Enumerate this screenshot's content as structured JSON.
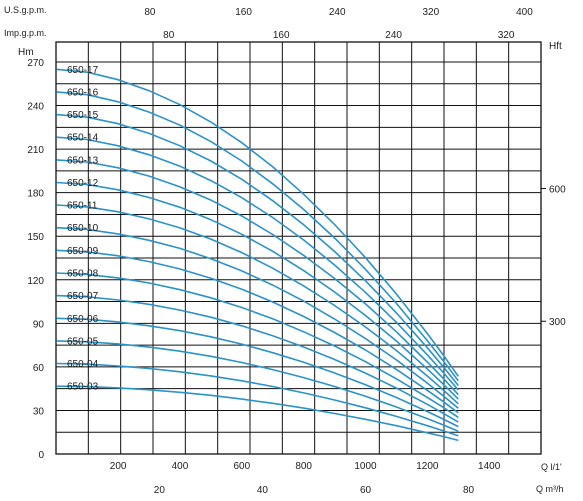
{
  "chart_data": {
    "type": "line",
    "axes": {
      "left_unit": "Hm",
      "right_unit": "Hft",
      "us_gpm_unit": "U.S.g.p.m.",
      "imp_gpm_unit": "Imp.g.p.m.",
      "ls_unit": "Q l/1'",
      "m3h_unit": "Q m³/h"
    },
    "ylim": [
      0,
      285
    ],
    "xlim": [
      0,
      1550
    ],
    "left_ticks": [
      "0",
      "30",
      "60",
      "90",
      "120",
      "150",
      "180",
      "210",
      "240",
      "270"
    ],
    "right_ticks": [
      "300",
      "600"
    ],
    "ls_ticks": [
      "200",
      "400",
      "600",
      "800",
      "1000",
      "1200",
      "1400"
    ],
    "m3h_ticks": [
      "20",
      "40",
      "60",
      "80"
    ],
    "us_ticks": [
      "80",
      "160",
      "240",
      "320",
      "400"
    ],
    "imp_ticks": [
      "80",
      "160",
      "240",
      "320"
    ],
    "x": [
      0,
      100,
      200,
      300,
      400,
      500,
      600,
      700,
      800,
      900,
      1000,
      1100,
      1200,
      1250,
      1300
    ],
    "series": [
      {
        "name": "650-03",
        "values": [
          46.7,
          46.4,
          45.5,
          44.2,
          42.5,
          40.4,
          37.8,
          34.9,
          31.6,
          27.9,
          23.9,
          19.5,
          14.6,
          12.1,
          9.4
        ]
      },
      {
        "name": "650-04",
        "values": [
          62.3,
          61.9,
          60.6,
          58.9,
          56.6,
          53.8,
          50.4,
          46.5,
          42.1,
          37.2,
          31.8,
          25.9,
          19.5,
          16.1,
          12.6
        ]
      },
      {
        "name": "650-05",
        "values": [
          77.9,
          77.3,
          75.8,
          73.6,
          70.8,
          67.3,
          63.0,
          58.1,
          52.6,
          46.5,
          39.8,
          32.4,
          24.4,
          20.1,
          15.7
        ]
      },
      {
        "name": "650-06",
        "values": [
          93.5,
          92.8,
          91.0,
          88.3,
          84.9,
          80.7,
          75.7,
          69.8,
          63.2,
          55.8,
          47.7,
          38.9,
          29.3,
          24.2,
          18.9
        ]
      },
      {
        "name": "650-07",
        "values": [
          109.1,
          108.3,
          106.1,
          103.1,
          99.1,
          94.2,
          88.3,
          81.4,
          73.7,
          65.1,
          55.7,
          45.4,
          34.2,
          28.2,
          22.0
        ]
      },
      {
        "name": "650-08",
        "values": [
          124.7,
          123.7,
          121.3,
          117.8,
          113.2,
          107.6,
          100.9,
          93.1,
          84.2,
          74.4,
          63.6,
          51.8,
          39.0,
          32.3,
          25.2
        ]
      },
      {
        "name": "650-09",
        "values": [
          140.3,
          139.2,
          136.5,
          132.5,
          127.4,
          121.1,
          113.5,
          104.7,
          94.7,
          83.7,
          71.6,
          58.3,
          43.9,
          36.3,
          28.3
        ]
      },
      {
        "name": "650-10",
        "values": [
          155.9,
          154.7,
          151.6,
          147.2,
          141.6,
          134.5,
          126.1,
          116.3,
          105.3,
          93.0,
          79.5,
          64.8,
          48.8,
          40.3,
          31.5
        ]
      },
      {
        "name": "650-11",
        "values": [
          171.5,
          170.2,
          166.8,
          161.9,
          155.7,
          148.0,
          138.7,
          128.0,
          115.8,
          102.3,
          87.5,
          71.3,
          53.7,
          44.4,
          34.6
        ]
      },
      {
        "name": "650-12",
        "values": [
          187.0,
          185.6,
          182.0,
          176.7,
          169.9,
          161.4,
          151.3,
          139.6,
          126.3,
          111.6,
          95.4,
          77.8,
          58.6,
          48.4,
          37.8
        ]
      },
      {
        "name": "650-13",
        "values": [
          202.6,
          201.1,
          197.1,
          191.4,
          184.0,
          174.9,
          163.9,
          151.2,
          136.8,
          120.9,
          103.4,
          84.2,
          63.4,
          52.4,
          40.9
        ]
      },
      {
        "name": "650-14",
        "values": [
          218.2,
          216.6,
          212.3,
          206.1,
          198.2,
          188.3,
          176.5,
          162.9,
          147.4,
          130.2,
          111.3,
          90.7,
          68.3,
          56.5,
          44.1
        ]
      },
      {
        "name": "650-15",
        "values": [
          233.8,
          232.0,
          227.5,
          220.8,
          212.3,
          201.8,
          189.2,
          174.5,
          157.9,
          139.5,
          119.3,
          97.2,
          73.2,
          60.5,
          47.2
        ]
      },
      {
        "name": "650-16",
        "values": [
          249.4,
          247.5,
          242.6,
          235.5,
          226.5,
          215.2,
          201.8,
          186.1,
          168.4,
          148.8,
          127.2,
          103.7,
          78.1,
          64.6,
          50.4
        ]
      },
      {
        "name": "650-17",
        "values": [
          265.0,
          263.0,
          257.8,
          250.2,
          240.6,
          228.7,
          214.4,
          197.8,
          178.9,
          158.1,
          135.2,
          110.2,
          83.0,
          68.6,
          53.5
        ]
      }
    ],
    "line_color": "#2a93c8",
    "grid": true
  }
}
